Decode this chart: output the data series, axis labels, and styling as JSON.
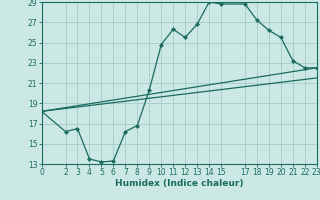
{
  "xlabel": "Humidex (Indice chaleur)",
  "background_color": "#cce8e4",
  "grid_color": "#aacfca",
  "line_color": "#1a6b60",
  "xlim": [
    0,
    23
  ],
  "ylim": [
    13,
    29
  ],
  "xticks": [
    0,
    2,
    3,
    4,
    5,
    6,
    7,
    8,
    9,
    10,
    11,
    12,
    13,
    14,
    15,
    17,
    18,
    19,
    20,
    21,
    22,
    23
  ],
  "yticks": [
    13,
    15,
    17,
    19,
    21,
    23,
    25,
    27,
    29
  ],
  "line1_x": [
    0,
    2,
    3,
    4,
    5,
    6,
    7,
    8,
    9,
    10,
    11,
    12,
    13,
    14,
    15,
    17,
    18,
    19,
    20,
    21,
    22,
    23
  ],
  "line1_y": [
    18.2,
    16.2,
    16.5,
    13.5,
    13.2,
    13.3,
    16.2,
    16.8,
    20.3,
    24.8,
    26.3,
    25.5,
    26.8,
    29.0,
    28.8,
    28.8,
    27.2,
    26.2,
    25.5,
    23.2,
    22.5,
    22.5
  ],
  "line2_x": [
    0,
    23
  ],
  "line2_y": [
    18.2,
    22.5
  ],
  "line3_x": [
    0,
    23
  ],
  "line3_y": [
    18.2,
    21.5
  ]
}
